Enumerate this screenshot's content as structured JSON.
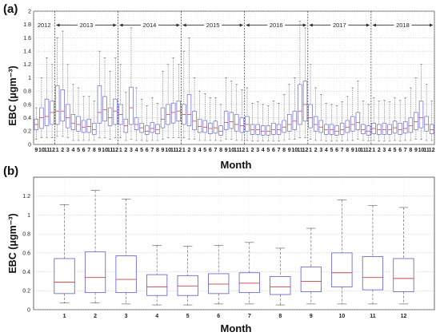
{
  "chart_data": [
    {
      "panel": "(a)",
      "type": "box",
      "xlabel": "Month",
      "ylabel": "EBC (μgm⁻³)",
      "ylim": [
        0,
        2
      ],
      "yticks": [
        "0",
        "0.2",
        "0.4",
        "0.6",
        "0.8",
        "1",
        "1.2",
        "1.4",
        "1.6",
        "1.8",
        "2"
      ],
      "grid": true,
      "years": [
        "2012",
        "2013",
        "2014",
        "2015",
        "2016",
        "2017",
        "2018"
      ],
      "categories": [
        "9",
        "10",
        "11",
        "12",
        "1",
        "2",
        "3",
        "4",
        "5",
        "6",
        "7",
        "8",
        "9",
        "10",
        "11",
        "12",
        "1",
        "2",
        "3",
        "4",
        "5",
        "6",
        "7",
        "8",
        "9",
        "10",
        "11",
        "12",
        "1",
        "2",
        "3",
        "4",
        "5",
        "6",
        "7",
        "8",
        "9",
        "10",
        "11",
        "12",
        "1",
        "2",
        "3",
        "4",
        "5",
        "6",
        "7",
        "8",
        "9",
        "10",
        "11",
        "12",
        "1",
        "2",
        "3",
        "4",
        "5",
        "6",
        "7",
        "8",
        "9",
        "10",
        "11",
        "12",
        "1",
        "2",
        "3",
        "4",
        "5",
        "6",
        "7",
        "8",
        "9",
        "10",
        "11",
        "12"
      ],
      "year_start_index": [
        0,
        4,
        16,
        28,
        40,
        52,
        64
      ],
      "boxes": [
        [
          0.08,
          0.22,
          0.3,
          0.38,
          0.55
        ],
        [
          0.1,
          0.24,
          0.4,
          0.55,
          1.0
        ],
        [
          0.1,
          0.28,
          0.42,
          0.68,
          1.3
        ],
        [
          0.1,
          0.3,
          0.48,
          0.65,
          1.2
        ],
        [
          0.12,
          0.3,
          0.5,
          0.88,
          1.6
        ],
        [
          0.12,
          0.35,
          0.5,
          0.82,
          1.7
        ],
        [
          0.1,
          0.25,
          0.4,
          0.6,
          1.2
        ],
        [
          0.06,
          0.22,
          0.32,
          0.45,
          0.9
        ],
        [
          0.06,
          0.2,
          0.3,
          0.42,
          0.85
        ],
        [
          0.06,
          0.18,
          0.26,
          0.36,
          0.72
        ],
        [
          0.06,
          0.18,
          0.27,
          0.38,
          0.72
        ],
        [
          0.06,
          0.15,
          0.22,
          0.32,
          0.65
        ],
        [
          0.1,
          0.32,
          0.48,
          0.88,
          1.4
        ],
        [
          0.1,
          0.35,
          0.52,
          0.72,
          1.3
        ],
        [
          0.08,
          0.28,
          0.4,
          0.55,
          1.1
        ],
        [
          0.1,
          0.3,
          0.5,
          0.68,
          1.3
        ],
        [
          0.1,
          0.3,
          0.45,
          0.6,
          1.2
        ],
        [
          0.06,
          0.18,
          0.28,
          0.38,
          0.78
        ],
        [
          0.08,
          0.3,
          0.55,
          0.86,
          1.75
        ],
        [
          0.06,
          0.22,
          0.3,
          0.4,
          0.85
        ],
        [
          0.06,
          0.18,
          0.25,
          0.32,
          0.68
        ],
        [
          0.05,
          0.15,
          0.2,
          0.28,
          0.58
        ],
        [
          0.06,
          0.18,
          0.24,
          0.33,
          0.7
        ],
        [
          0.06,
          0.16,
          0.22,
          0.3,
          0.62
        ],
        [
          0.08,
          0.25,
          0.38,
          0.55,
          1.1
        ],
        [
          0.1,
          0.3,
          0.45,
          0.6,
          1.2
        ],
        [
          0.1,
          0.32,
          0.48,
          0.62,
          1.3
        ],
        [
          0.1,
          0.35,
          0.5,
          0.65,
          1.2
        ],
        [
          0.1,
          0.3,
          0.45,
          0.6,
          1.4
        ],
        [
          0.08,
          0.28,
          0.45,
          0.75,
          1.6
        ],
        [
          0.08,
          0.22,
          0.35,
          0.5,
          1.0
        ],
        [
          0.06,
          0.18,
          0.27,
          0.38,
          0.8
        ],
        [
          0.06,
          0.18,
          0.26,
          0.36,
          0.76
        ],
        [
          0.06,
          0.16,
          0.24,
          0.32,
          0.7
        ],
        [
          0.06,
          0.17,
          0.25,
          0.35,
          0.7
        ],
        [
          0.05,
          0.14,
          0.2,
          0.28,
          0.6
        ],
        [
          0.08,
          0.22,
          0.33,
          0.5,
          1.0
        ],
        [
          0.08,
          0.24,
          0.34,
          0.48,
          0.95
        ],
        [
          0.06,
          0.2,
          0.3,
          0.45,
          0.9
        ],
        [
          0.06,
          0.18,
          0.28,
          0.4,
          0.82
        ],
        [
          0.06,
          0.2,
          0.3,
          0.42,
          0.85
        ],
        [
          0.05,
          0.15,
          0.22,
          0.3,
          0.62
        ],
        [
          0.05,
          0.15,
          0.22,
          0.3,
          0.64
        ],
        [
          0.05,
          0.14,
          0.2,
          0.28,
          0.6
        ],
        [
          0.05,
          0.14,
          0.2,
          0.28,
          0.58
        ],
        [
          0.05,
          0.15,
          0.22,
          0.32,
          0.65
        ],
        [
          0.05,
          0.15,
          0.22,
          0.3,
          0.62
        ],
        [
          0.06,
          0.18,
          0.26,
          0.36,
          0.75
        ],
        [
          0.08,
          0.2,
          0.3,
          0.45,
          0.9
        ],
        [
          0.08,
          0.22,
          0.35,
          0.5,
          1.0
        ],
        [
          0.1,
          0.3,
          0.5,
          0.9,
          1.85
        ],
        [
          0.1,
          0.35,
          0.6,
          0.95,
          1.75
        ],
        [
          0.08,
          0.25,
          0.4,
          0.6,
          1.2
        ],
        [
          0.06,
          0.2,
          0.3,
          0.42,
          0.85
        ],
        [
          0.06,
          0.18,
          0.26,
          0.36,
          0.75
        ],
        [
          0.05,
          0.15,
          0.22,
          0.3,
          0.62
        ],
        [
          0.05,
          0.15,
          0.22,
          0.3,
          0.6
        ],
        [
          0.05,
          0.14,
          0.2,
          0.28,
          0.58
        ],
        [
          0.05,
          0.15,
          0.22,
          0.32,
          0.64
        ],
        [
          0.06,
          0.18,
          0.26,
          0.36,
          0.72
        ],
        [
          0.06,
          0.2,
          0.3,
          0.42,
          0.85
        ],
        [
          0.08,
          0.22,
          0.33,
          0.48,
          0.95
        ],
        [
          0.06,
          0.16,
          0.22,
          0.3,
          0.65
        ],
        [
          0.05,
          0.14,
          0.2,
          0.28,
          0.6
        ],
        [
          0.06,
          0.16,
          0.24,
          0.32,
          0.7
        ],
        [
          0.05,
          0.15,
          0.22,
          0.3,
          0.65
        ],
        [
          0.05,
          0.15,
          0.22,
          0.32,
          0.66
        ],
        [
          0.05,
          0.15,
          0.22,
          0.3,
          0.64
        ],
        [
          0.06,
          0.17,
          0.25,
          0.35,
          0.7
        ],
        [
          0.05,
          0.15,
          0.22,
          0.32,
          0.66
        ],
        [
          0.06,
          0.17,
          0.24,
          0.34,
          0.7
        ],
        [
          0.06,
          0.18,
          0.28,
          0.4,
          0.85
        ],
        [
          0.08,
          0.22,
          0.34,
          0.48,
          1.0
        ],
        [
          0.08,
          0.25,
          0.4,
          0.65,
          1.2
        ],
        [
          0.06,
          0.2,
          0.3,
          0.42,
          0.9
        ],
        [
          0.06,
          0.16,
          0.22,
          0.3,
          0.65
        ]
      ]
    },
    {
      "panel": "(b)",
      "type": "box",
      "xlabel": "Month",
      "ylabel": "EBC (μgm⁻³)",
      "ylim": [
        0,
        1.4
      ],
      "yticks": [
        "0",
        "0.2",
        "0.4",
        "0.6",
        "0.8",
        "1",
        "1.2"
      ],
      "grid": true,
      "categories": [
        "1",
        "2",
        "3",
        "4",
        "5",
        "6",
        "7",
        "8",
        "9",
        "10",
        "11",
        "12"
      ],
      "boxes": [
        {
          "min": 0.07,
          "q1": 0.17,
          "median": 0.29,
          "q3": 0.54,
          "max": 1.11
        },
        {
          "min": 0.07,
          "q1": 0.18,
          "median": 0.34,
          "q3": 0.61,
          "max": 1.26
        },
        {
          "min": 0.06,
          "q1": 0.18,
          "median": 0.32,
          "q3": 0.57,
          "max": 1.17
        },
        {
          "min": 0.05,
          "q1": 0.15,
          "median": 0.24,
          "q3": 0.37,
          "max": 0.68
        },
        {
          "min": 0.05,
          "q1": 0.15,
          "median": 0.25,
          "q3": 0.36,
          "max": 0.67
        },
        {
          "min": 0.06,
          "q1": 0.17,
          "median": 0.27,
          "q3": 0.38,
          "max": 0.68
        },
        {
          "min": 0.06,
          "q1": 0.18,
          "median": 0.28,
          "q3": 0.39,
          "max": 0.71
        },
        {
          "min": 0.05,
          "q1": 0.16,
          "median": 0.24,
          "q3": 0.35,
          "max": 0.65
        },
        {
          "min": 0.06,
          "q1": 0.19,
          "median": 0.3,
          "q3": 0.45,
          "max": 0.86
        },
        {
          "min": 0.06,
          "q1": 0.24,
          "median": 0.39,
          "q3": 0.6,
          "max": 1.16
        },
        {
          "min": 0.06,
          "q1": 0.21,
          "median": 0.34,
          "q3": 0.56,
          "max": 1.1
        },
        {
          "min": 0.06,
          "q1": 0.19,
          "median": 0.33,
          "q3": 0.54,
          "max": 1.08
        }
      ]
    }
  ]
}
